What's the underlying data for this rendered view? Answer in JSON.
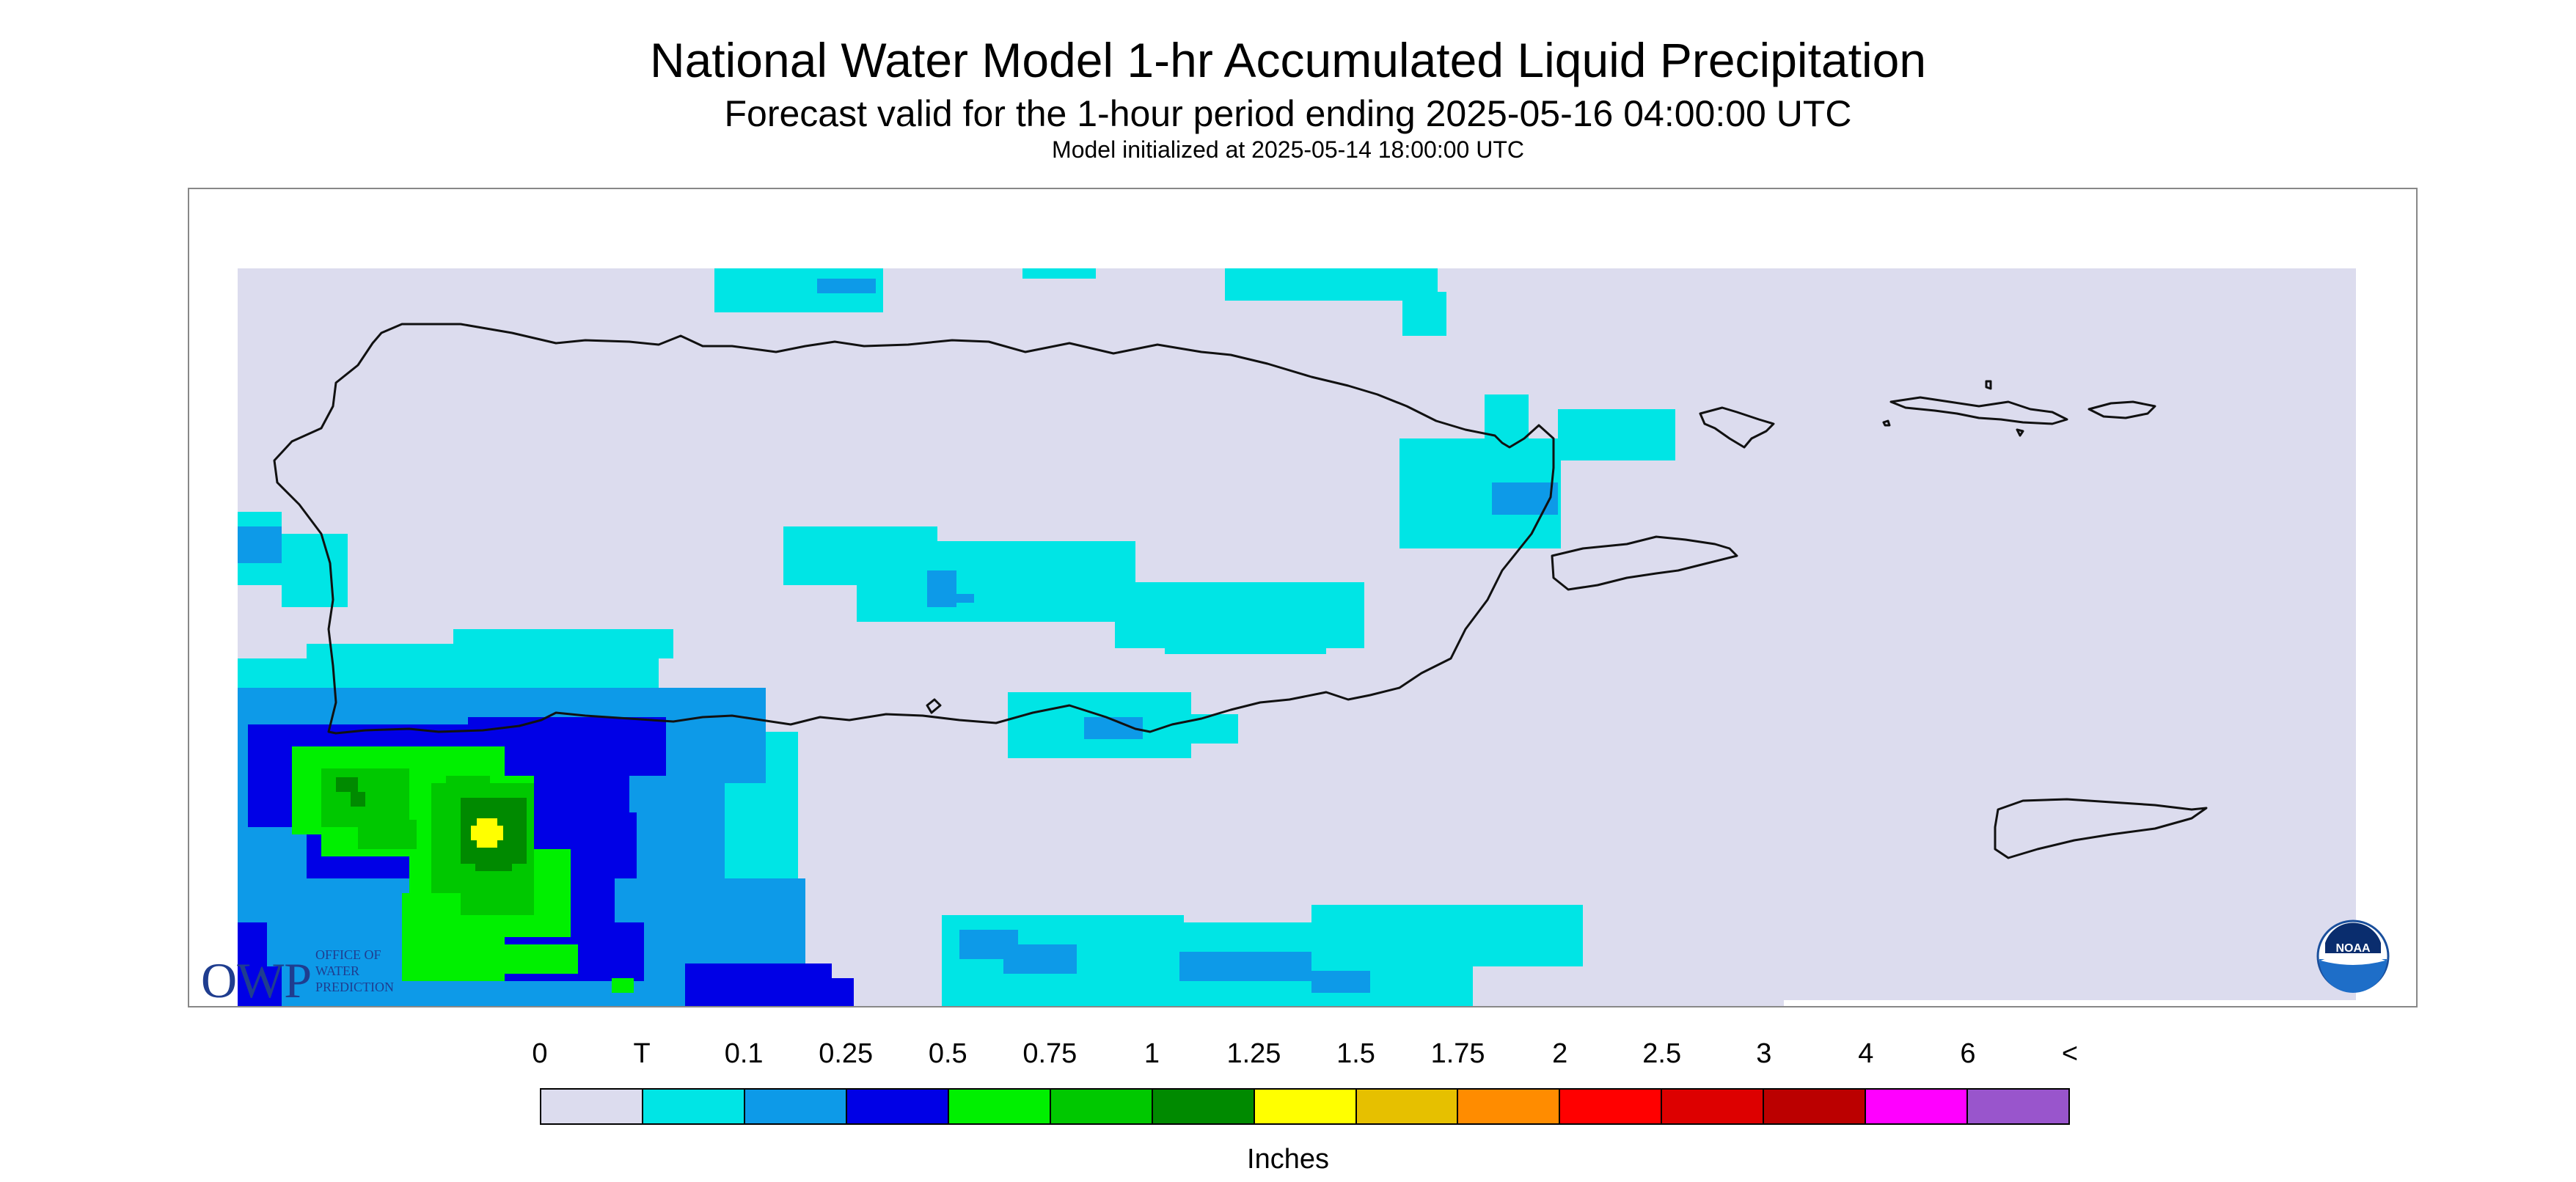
{
  "header": {
    "title": "National Water Model 1-hr Accumulated Liquid Precipitation",
    "subtitle": "Forecast valid for the 1-hour period ending 2025-05-16 04:00:00 UTC",
    "initialized": "Model initialized at 2025-05-14 18:00:00 UTC"
  },
  "map": {
    "background_color": "#dcdcee",
    "coastline_color": "#111111",
    "logo_owp": {
      "text": "OWP",
      "subtext": [
        "OFFICE OF",
        "WATER",
        "PREDICTION"
      ]
    },
    "logo_noaa": {
      "text": "NOAA"
    }
  },
  "legend": {
    "labels": [
      "0",
      "T",
      "0.1",
      "0.25",
      "0.5",
      "0.75",
      "1",
      "1.25",
      "1.5",
      "1.75",
      "2",
      "2.5",
      "3",
      "4",
      "6",
      "<"
    ],
    "colors": [
      "#dcdcee",
      "#00e5e5",
      "#0d9ae8",
      "#0000e6",
      "#00f000",
      "#00c800",
      "#008a00",
      "#ffff00",
      "#e6c000",
      "#ff8c00",
      "#ff0000",
      "#dd0000",
      "#bb0000",
      "#ff00ff",
      "#9955cc"
    ],
    "units": "Inches"
  }
}
